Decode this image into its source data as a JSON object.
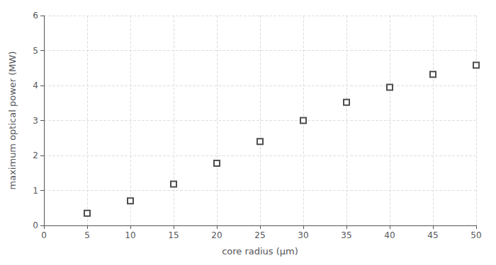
{
  "chart_data": {
    "type": "scatter",
    "x": [
      5,
      10,
      15,
      20,
      25,
      30,
      35,
      40,
      45,
      50
    ],
    "values": [
      0.35,
      0.7,
      1.18,
      1.78,
      2.4,
      3.0,
      3.52,
      3.95,
      4.32,
      4.58
    ],
    "xlabel": "core radius (μm)",
    "ylabel": "maximum optical power (MW)",
    "xlim": [
      0,
      50
    ],
    "ylim": [
      0,
      6
    ],
    "xticks": [
      0,
      5,
      10,
      15,
      20,
      25,
      30,
      35,
      40,
      45,
      50
    ],
    "yticks": [
      0,
      1,
      2,
      3,
      4,
      5,
      6
    ],
    "marker": "square",
    "color": "#222222",
    "grid": true
  }
}
